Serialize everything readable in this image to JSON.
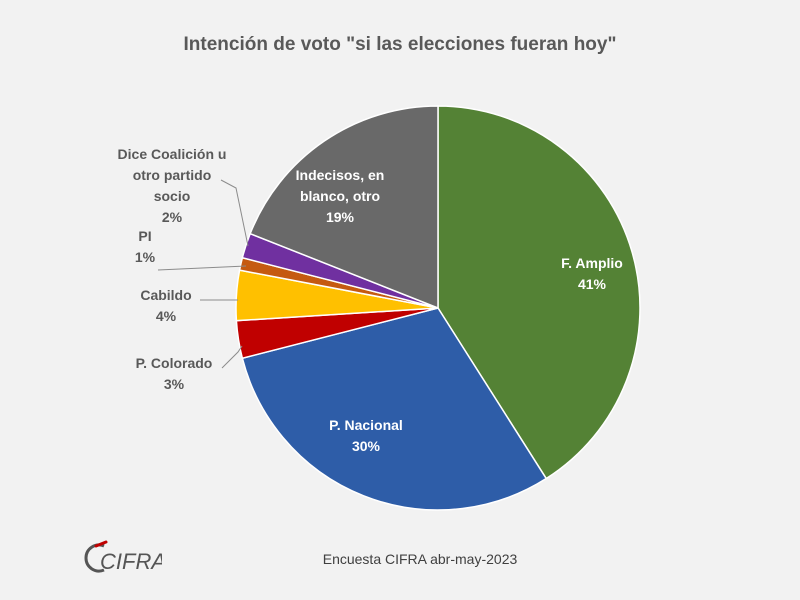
{
  "chart_data": {
    "type": "pie",
    "title": "Intención de voto \"si las elecciones fueran hoy\"",
    "slices": [
      {
        "label_lines": [
          "F. Amplio"
        ],
        "value_text": "41%",
        "value": 41,
        "color": "#548235",
        "inside": true,
        "text_color": "#ffffff"
      },
      {
        "label_lines": [
          "P. Nacional"
        ],
        "value_text": "30%",
        "value": 30,
        "color": "#2e5da8",
        "inside": true,
        "text_color": "#ffffff"
      },
      {
        "label_lines": [
          "P. Colorado"
        ],
        "value_text": "3%",
        "value": 3,
        "color": "#c00000",
        "inside": false,
        "text_color": "#595959"
      },
      {
        "label_lines": [
          "Cabildo"
        ],
        "value_text": "4%",
        "value": 4,
        "color": "#ffc000",
        "inside": false,
        "text_color": "#595959"
      },
      {
        "label_lines": [
          "PI"
        ],
        "value_text": "1%",
        "value": 1,
        "color": "#c55a11",
        "inside": false,
        "text_color": "#595959"
      },
      {
        "label_lines": [
          "Dice Coalición u",
          "otro partido",
          "socio"
        ],
        "value_text": "2%",
        "value": 2,
        "color": "#7030a0",
        "inside": false,
        "text_color": "#595959"
      },
      {
        "label_lines": [
          "Indecisos, en",
          "blanco, otro"
        ],
        "value_text": "19%",
        "value": 19,
        "color": "#696969",
        "inside": true,
        "text_color": "#ffffff"
      }
    ]
  },
  "footer": {
    "source": "Encuesta CIFRA abr-may-2023",
    "logo_text": "CIFRA"
  }
}
